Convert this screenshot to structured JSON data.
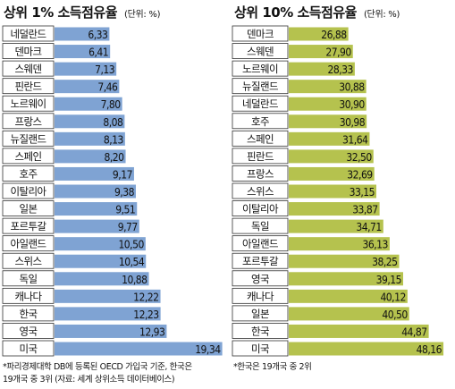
{
  "colors": {
    "left_bar": "#7FA3D3",
    "right_bar": "#B5C24E"
  },
  "left": {
    "title": "상위 1% 소득점유율",
    "unit": "(단위: %)",
    "note_line1": "*파리경제대학 DB에 등록된 OECD 가입국 기준,  한국은",
    "note_line2": "19개국 중 3위    (자료: 세계 상위소득 데이터베이스)"
  },
  "right": {
    "title": "상위 10% 소득점유율",
    "unit": "(단위: %)",
    "note_line1": "*한국은 19개국 중 2위"
  },
  "chart_data": [
    {
      "type": "bar",
      "orientation": "horizontal",
      "title": "상위 1% 소득점유율",
      "unit": "%",
      "categories": [
        "네덜란드",
        "덴마크",
        "스웨덴",
        "핀란드",
        "노르웨이",
        "프랑스",
        "뉴질랜드",
        "스페인",
        "호주",
        "이탈리아",
        "일본",
        "포르투갈",
        "아일랜드",
        "스위스",
        "독일",
        "캐나다",
        "한국",
        "영국",
        "미국"
      ],
      "values": [
        6.33,
        6.41,
        7.13,
        7.46,
        7.8,
        8.08,
        8.13,
        8.2,
        9.17,
        9.38,
        9.51,
        9.77,
        10.5,
        10.54,
        10.88,
        12.22,
        12.23,
        12.93,
        19.34
      ],
      "value_labels": [
        "6,33",
        "6,41",
        "7,13",
        "7,46",
        "7,80",
        "8,08",
        "8,13",
        "8,20",
        "9,17",
        "9,38",
        "9,51",
        "9,77",
        "10,50",
        "10,54",
        "10,88",
        "12,22",
        "12,23",
        "12,93",
        "19,34"
      ]
    },
    {
      "type": "bar",
      "orientation": "horizontal",
      "title": "상위 10% 소득점유율",
      "unit": "%",
      "categories": [
        "덴마크",
        "스웨덴",
        "노르웨이",
        "뉴질랜드",
        "네덜란드",
        "호주",
        "스페인",
        "핀란드",
        "프랑스",
        "스위스",
        "이탈리아",
        "독일",
        "아일랜드",
        "포르투갈",
        "영국",
        "캐나다",
        "일본",
        "한국",
        "미국"
      ],
      "values": [
        26.88,
        27.9,
        28.33,
        30.88,
        30.9,
        30.98,
        31.64,
        32.5,
        32.69,
        33.15,
        33.87,
        34.71,
        36.13,
        38.25,
        39.15,
        40.12,
        40.5,
        44.87,
        48.16
      ],
      "value_labels": [
        "26,88",
        "27,90",
        "28,33",
        "30,88",
        "30,90",
        "30,98",
        "31,64",
        "32,50",
        "32,69",
        "33,15",
        "33,87",
        "34,71",
        "36,13",
        "38,25",
        "39,15",
        "40,12",
        "40,50",
        "44,87",
        "48,16"
      ]
    }
  ]
}
